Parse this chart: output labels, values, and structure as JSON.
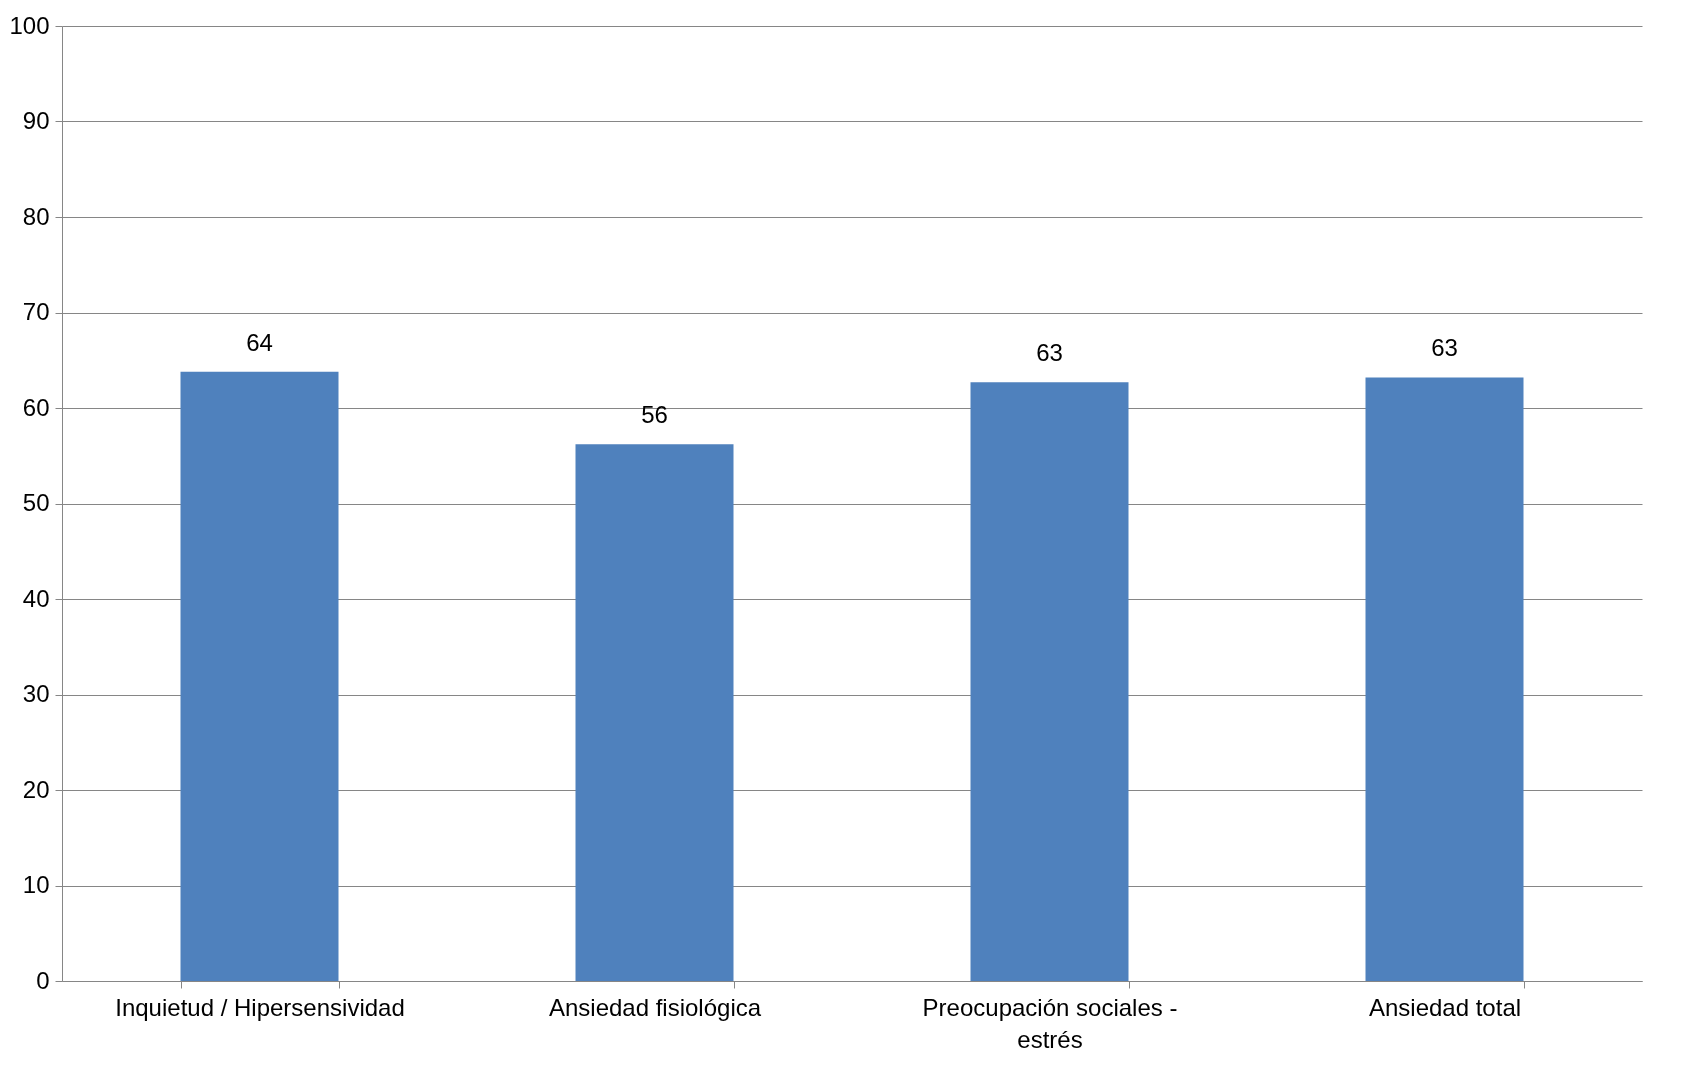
{
  "chart_data": {
    "type": "bar",
    "categories": [
      "Inquietud / Hipersensividad",
      "Ansiedad fisiológica",
      "Preocupación sociales - estrés",
      "Ansiedad total"
    ],
    "values": [
      63.8,
      56.2,
      62.7,
      63.2
    ],
    "value_labels": [
      "64",
      "56",
      "63",
      "63"
    ],
    "color": "#4f81bd",
    "ylim": [
      0,
      100
    ],
    "yticks": [
      0,
      10,
      20,
      30,
      40,
      50,
      60,
      70,
      80,
      90,
      100
    ],
    "grid": "y"
  }
}
